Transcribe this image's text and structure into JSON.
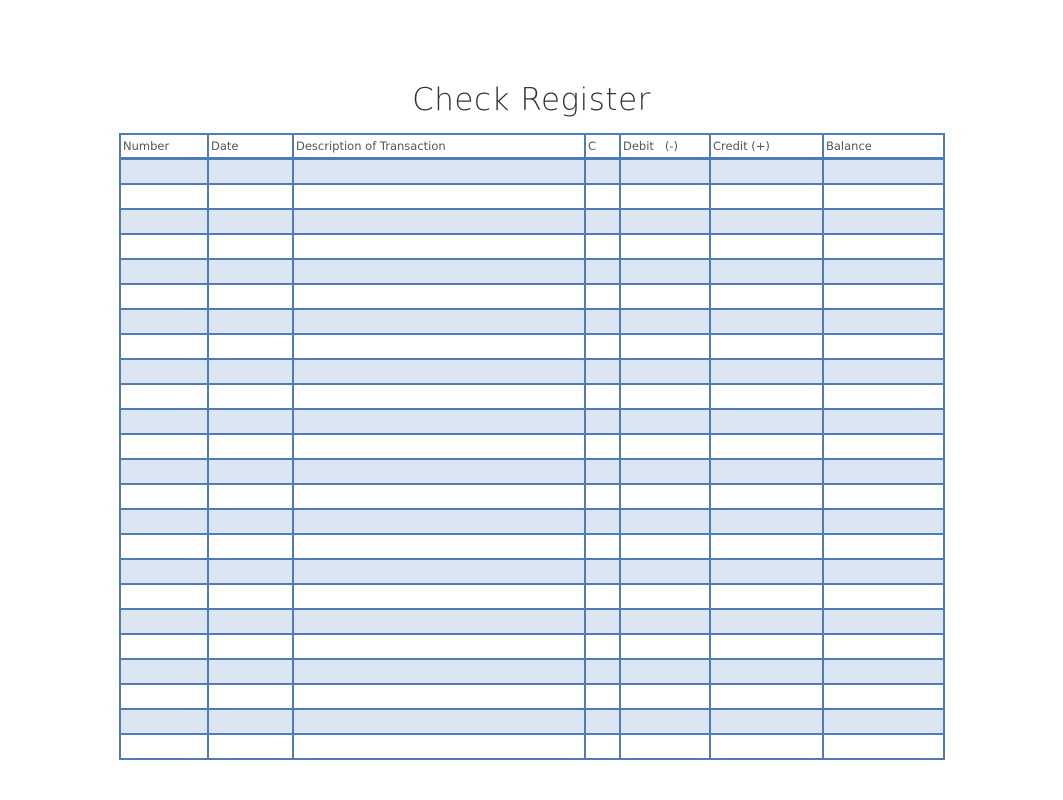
{
  "title": "Check Register",
  "columns": [
    "Number",
    "Date",
    "Description of Transaction",
    "C",
    "Debit   (-)",
    "Credit (+)",
    "Balance"
  ],
  "row_count": 24,
  "colors": {
    "border": "#4f7bb6",
    "row_shade": "#dce6f2"
  }
}
